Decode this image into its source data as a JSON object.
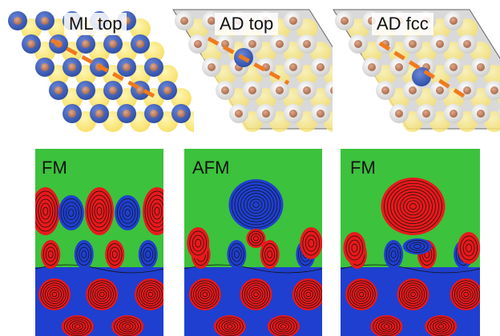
{
  "top_panels": [
    {
      "label": "ML top",
      "theme": "ML"
    },
    {
      "label": "AD top",
      "theme": "AD"
    },
    {
      "label": "AD fcc",
      "theme": "AD"
    }
  ],
  "bottom_panels": [
    {
      "label": "FM",
      "adatom": "none"
    },
    {
      "label": "AFM",
      "adatom": "blue"
    },
    {
      "label": "FM",
      "adatom": "red"
    }
  ],
  "colors": {
    "cobalt_blue": "#2f4fa8",
    "sulfur_yellow": "#f7e06a",
    "metal_brown": "#a8694a",
    "light_atom": "#eaeaea",
    "guide_line": "#f07a1e",
    "map_green": "#3cc23c",
    "map_red": "#e8191b",
    "map_blue": "#1f3fd0"
  }
}
